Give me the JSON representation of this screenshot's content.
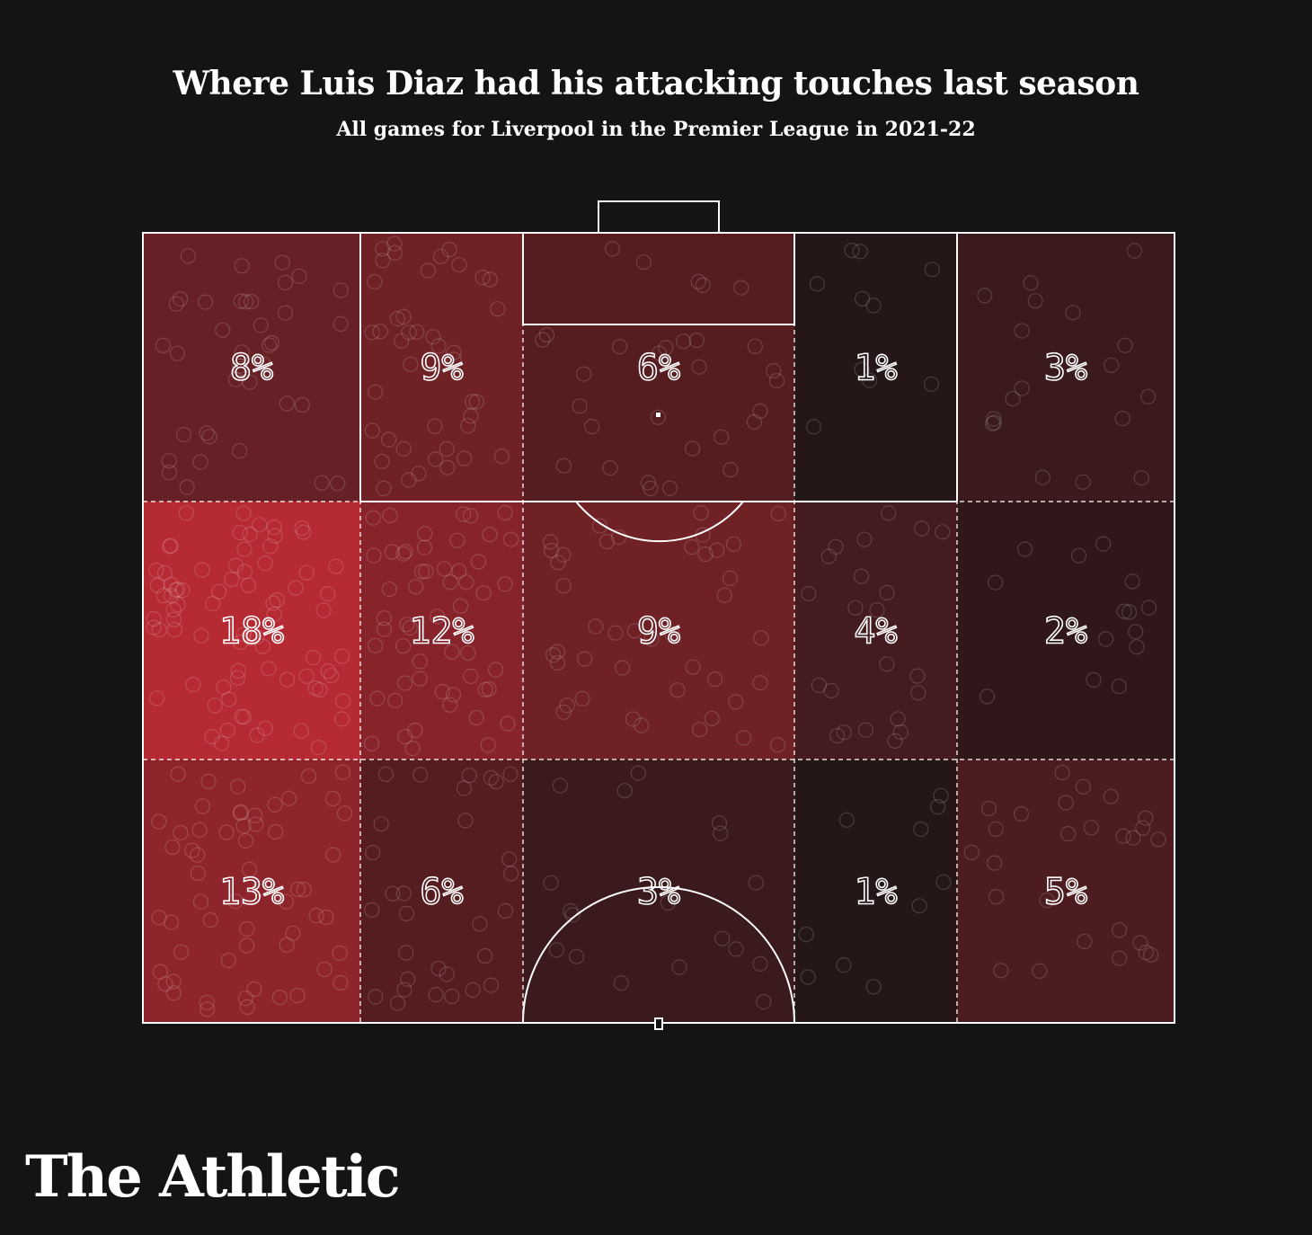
{
  "header": {
    "title": "Where Luis Diaz had his attacking touches last season",
    "subtitle": "All games for Liverpool in the Premier League in 2021-22"
  },
  "brand": {
    "name": "The Athletic"
  },
  "colors": {
    "background": "#141414",
    "low": "#181516",
    "high": "#b52a33",
    "lines": "#ffffff"
  },
  "chart_data": {
    "type": "heatmap",
    "title": "Where Luis Diaz had his attacking touches last season",
    "subtitle": "All games for Liverpool in the Premier League in 2021-22",
    "xlabel": "",
    "ylabel": "",
    "columns": 5,
    "rows": 3,
    "unit": "%",
    "cells": [
      [
        8,
        9,
        6,
        1,
        3
      ],
      [
        18,
        12,
        9,
        4,
        2
      ],
      [
        13,
        6,
        3,
        1,
        5
      ]
    ],
    "labels": [
      [
        "8%",
        "9%",
        "6%",
        "1%",
        "3%"
      ],
      [
        "18%",
        "12%",
        "9%",
        "4%",
        "2%"
      ],
      [
        "13%",
        "6%",
        "3%",
        "1%",
        "5%"
      ]
    ],
    "max_value": 18
  }
}
